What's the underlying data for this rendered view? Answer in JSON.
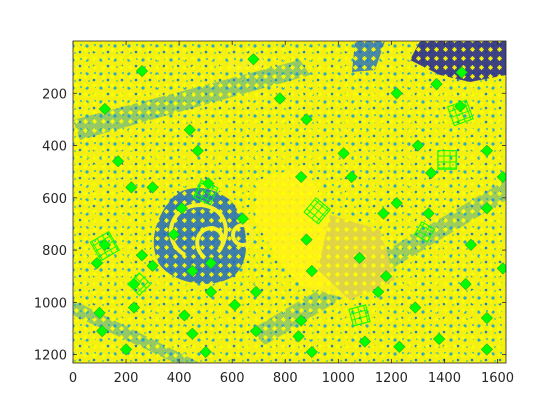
{
  "chart_data": {
    "type": "scatter",
    "title": "",
    "xlabel": "",
    "ylabel": "",
    "xlim": [
      0,
      1632
    ],
    "ylim": [
      1232,
      0
    ],
    "y_axis_reversed": true,
    "x_ticks": [
      0,
      200,
      400,
      600,
      800,
      1000,
      1200,
      1400,
      1600
    ],
    "y_ticks": [
      200,
      400,
      600,
      800,
      1000,
      1200
    ],
    "x_tick_labels": [
      "0",
      "200",
      "400",
      "600",
      "800",
      "1000",
      "1200",
      "1400",
      "1600"
    ],
    "y_tick_labels": [
      "200",
      "400",
      "600",
      "800",
      "1000",
      "1200"
    ],
    "grid": false,
    "legend": "none",
    "background_image": "parula-colormap aerial image (blue to yellow)",
    "series": [
      {
        "marker": "star",
        "color": "#FFFF00",
        "description": "dense feature points covering entire image"
      },
      {
        "marker": "square",
        "color": "#00FF00",
        "description": "green square markers and rotated grid patches"
      }
    ],
    "green_square_points": [
      [
        260,
        115
      ],
      [
        680,
        70
      ],
      [
        1370,
        165
      ],
      [
        1465,
        120
      ],
      [
        120,
        260
      ],
      [
        780,
        220
      ],
      [
        440,
        340
      ],
      [
        880,
        300
      ],
      [
        1220,
        200
      ],
      [
        1460,
        250
      ],
      [
        170,
        460
      ],
      [
        470,
        420
      ],
      [
        1020,
        430
      ],
      [
        1300,
        400
      ],
      [
        1560,
        420
      ],
      [
        220,
        560
      ],
      [
        300,
        560
      ],
      [
        510,
        545
      ],
      [
        860,
        520
      ],
      [
        1050,
        520
      ],
      [
        1350,
        505
      ],
      [
        1620,
        520
      ],
      [
        410,
        640
      ],
      [
        640,
        680
      ],
      [
        1170,
        660
      ],
      [
        1220,
        620
      ],
      [
        1340,
        660
      ],
      [
        1560,
        640
      ],
      [
        120,
        780
      ],
      [
        260,
        820
      ],
      [
        380,
        740
      ],
      [
        520,
        850
      ],
      [
        880,
        760
      ],
      [
        1080,
        830
      ],
      [
        1500,
        780
      ],
      [
        90,
        850
      ],
      [
        300,
        860
      ],
      [
        450,
        880
      ],
      [
        900,
        880
      ],
      [
        1180,
        900
      ],
      [
        1620,
        870
      ],
      [
        230,
        930
      ],
      [
        520,
        960
      ],
      [
        690,
        960
      ],
      [
        1150,
        960
      ],
      [
        1480,
        930
      ],
      [
        100,
        1040
      ],
      [
        230,
        1020
      ],
      [
        420,
        1050
      ],
      [
        610,
        1010
      ],
      [
        860,
        1070
      ],
      [
        1290,
        1020
      ],
      [
        1560,
        1060
      ],
      [
        110,
        1110
      ],
      [
        450,
        1120
      ],
      [
        690,
        1110
      ],
      [
        850,
        1130
      ],
      [
        1100,
        1150
      ],
      [
        1380,
        1140
      ],
      [
        200,
        1180
      ],
      [
        500,
        1190
      ],
      [
        900,
        1190
      ],
      [
        1230,
        1170
      ],
      [
        1560,
        1180
      ]
    ],
    "green_grid_patches": [
      {
        "center": [
          1460,
          275
        ],
        "size": 75,
        "angle": -20
      },
      {
        "center": [
          1410,
          455
        ],
        "size": 70,
        "angle": 0
      },
      {
        "center": [
          500,
          580
        ],
        "size": 70,
        "angle": 25
      },
      {
        "center": [
          920,
          650
        ],
        "size": 70,
        "angle": 40
      },
      {
        "center": [
          120,
          785
        ],
        "size": 80,
        "angle": -30
      },
      {
        "center": [
          1325,
          730
        ],
        "size": 55,
        "angle": 30
      },
      {
        "center": [
          250,
          930
        ],
        "size": 60,
        "angle": 45
      },
      {
        "center": [
          1080,
          1050
        ],
        "size": 65,
        "angle": -15
      }
    ],
    "colors": {
      "axes_background": "#F9FB0E",
      "dark_blue": "#2B2F8F",
      "mid_blue": "#1F6FC5",
      "teal": "#22A2C3",
      "yellow": "#FFFF00",
      "green": "#00FF00",
      "axis": "#262626"
    }
  }
}
